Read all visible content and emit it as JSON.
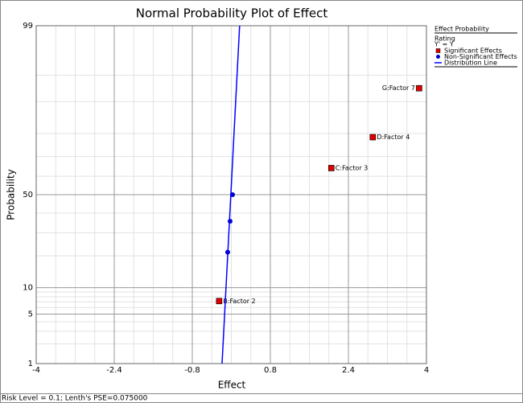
{
  "chart_data": {
    "type": "probability",
    "title": "Normal Probability Plot of Effect",
    "x_label": "Effect",
    "y_label": "Probability",
    "xlim": [
      -4,
      4
    ],
    "xticks": [
      -4,
      -2.4,
      -0.8,
      0.8,
      2.4,
      4
    ],
    "ylim": [
      1,
      99
    ],
    "yticks": [
      1,
      5,
      10,
      50,
      99
    ],
    "y_minor_grid": [
      2,
      3,
      4,
      6,
      7,
      8,
      9,
      20,
      30,
      40,
      60,
      70,
      80,
      90,
      95
    ],
    "grid": true,
    "legend_position": "right",
    "legend_title": "Effect Probability",
    "legend_notes": [
      "Rating",
      "Y' = Y"
    ],
    "series": [
      {
        "name": "Significant Effects",
        "color": "#dd0000",
        "marker": "square",
        "x": [
          -0.25,
          2.05,
          2.9,
          3.85
        ],
        "values": [
          7.14,
          64.29,
          78.57,
          92.86
        ],
        "labels": [
          "B:Factor 2",
          "C:Factor 3",
          "D:Factor 4",
          "G:Factor 7"
        ]
      },
      {
        "name": "Non-Significant Effects",
        "color": "#0000cc",
        "marker": "circle",
        "x": [
          -0.075,
          -0.025,
          0.025
        ],
        "values": [
          21.43,
          35.71,
          50
        ]
      },
      {
        "name": "Distribution Line",
        "color": "#0000ff",
        "marker": "line",
        "x": [
          -0.19,
          0.17
        ],
        "values": [
          1,
          99
        ]
      }
    ],
    "footer": "Risk Level = 0.1; Lenth's PSE=0.075000"
  }
}
